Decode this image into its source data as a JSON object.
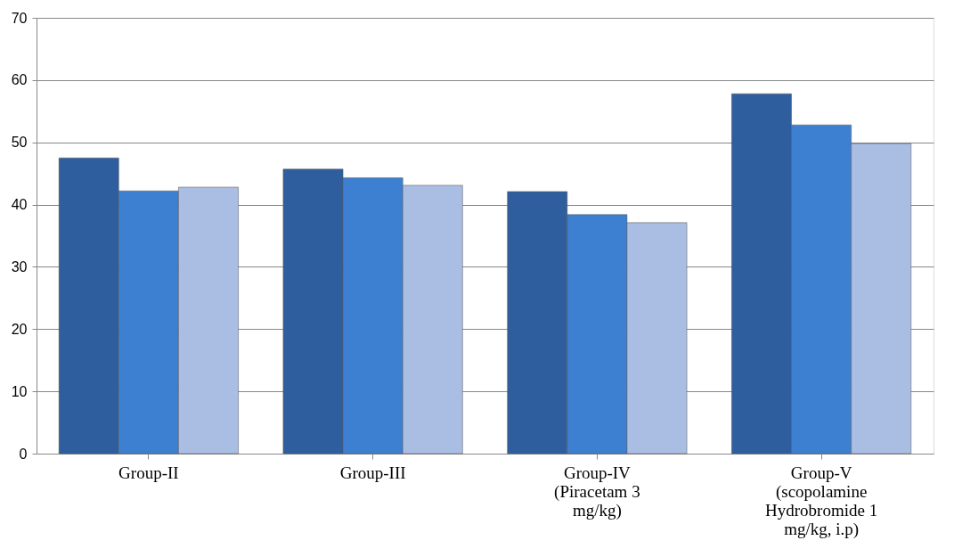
{
  "chart_data": {
    "type": "bar",
    "categories": [
      "Group-II",
      "Group-III",
      "Group-IV (Piracetam 3 mg/kg)",
      "Group-V (scopolamine Hydrobromide 1 mg/kg, i.p)"
    ],
    "series": [
      {
        "color": "#2e5e9e",
        "values": [
          47.5,
          45.7,
          42.1,
          57.8
        ]
      },
      {
        "color": "#3d7fd0",
        "values": [
          42.2,
          44.3,
          38.4,
          52.8
        ]
      },
      {
        "color": "#aabde2",
        "values": [
          42.8,
          43.1,
          37.1,
          49.8
        ]
      }
    ],
    "ylim": [
      0,
      70
    ],
    "yticks": [
      0,
      10,
      20,
      30,
      40,
      50,
      60,
      70
    ],
    "grid": "y",
    "legend": false
  }
}
